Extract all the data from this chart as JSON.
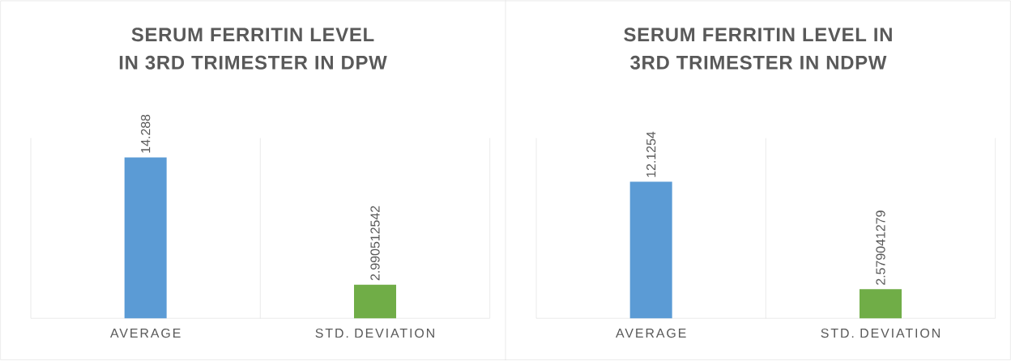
{
  "chart_data": [
    {
      "type": "bar",
      "title": "SERUM FERRITIN LEVEL IN 3RD TRIMESTER IN DPW",
      "categories": [
        "AVERAGE",
        "STD. DEVIATION"
      ],
      "values": [
        14.288,
        2.990512542
      ],
      "colors": [
        "#5b9bd5",
        "#70ad47"
      ],
      "data_labels": true,
      "grid": "x",
      "ylim": [
        0,
        16
      ],
      "tick_labels": "x"
    },
    {
      "type": "bar",
      "title": "SERUM FERRITIN LEVEL IN 3RD TRIMESTER IN NDPW",
      "categories": [
        "AVERAGE",
        "STD. DEVIATION"
      ],
      "values": [
        12.1254,
        2.579041279
      ],
      "colors": [
        "#5b9bd5",
        "#70ad47"
      ],
      "data_labels": true,
      "grid": "x",
      "ylim": [
        0,
        16
      ],
      "tick_labels": "x"
    }
  ]
}
